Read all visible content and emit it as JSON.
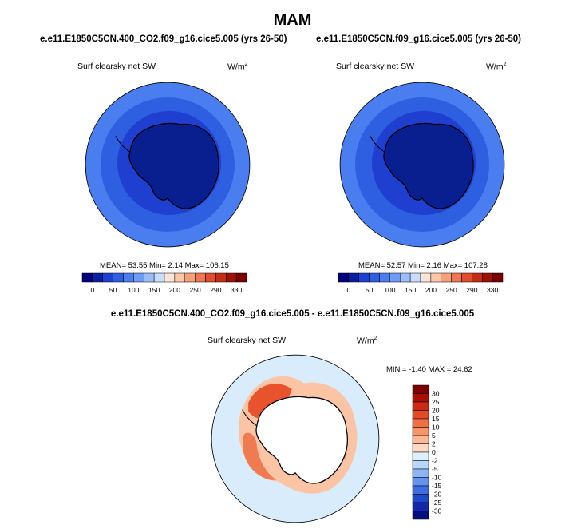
{
  "page": {
    "title": "MAM"
  },
  "colors": {
    "ocean_deep": "#1e3fcf",
    "ocean_mid": "#2e5fe0",
    "ocean_outer": "#4a7ef0",
    "land": "#0a1f8f",
    "diff_bg": "#d8ecfb",
    "coast": "#000000"
  },
  "panels": [
    {
      "case": "e.e11.E1850C5CN.400_CO2.f09_g16.cice5.005 (yrs 26-50)",
      "variable": "Surf clearsky net SW",
      "units": "W/m",
      "units_sup": "2",
      "stats": "MEAN=  53.55  Min=   2.14  Max= 106.15"
    },
    {
      "case": "e.e11.E1850C5CN.f09_g16.cice5.005 (yrs 26-50)",
      "variable": "Surf clearsky net SW",
      "units": "W/m",
      "units_sup": "2",
      "stats": "MEAN=  52.57  Min=   2.16  Max= 107.28"
    }
  ],
  "abs_colorbar": {
    "labels": [
      "0",
      "50",
      "100",
      "150",
      "200",
      "250",
      "290",
      "330"
    ],
    "colors": [
      "#00007f",
      "#0a1f9f",
      "#1e3fcf",
      "#2e5fe0",
      "#4a7ef0",
      "#6f9cf5",
      "#9bbdf9",
      "#c8dcfc",
      "#f9e5d8",
      "#fbc7a9",
      "#f6a07a",
      "#ee7650",
      "#dd4e2c",
      "#c22d15",
      "#9c1305",
      "#7a0000"
    ]
  },
  "diff_panel": {
    "title": "e.e11.E1850C5CN.400_CO2.f09_g16.cice5.005 - e.e11.E1850C5CN.f09_g16.cice5.005",
    "variable": "Surf clearsky net SW",
    "units": "W/m",
    "units_sup": "2",
    "stats": "MIN = -1.40 MAX = 24.62"
  },
  "diff_colorbar": {
    "labels": [
      "30",
      "25",
      "20",
      "15",
      "10",
      "5",
      "2",
      "0",
      "-2",
      "-5",
      "-10",
      "-15",
      "-20",
      "-25",
      "-30"
    ],
    "colors": [
      "#7f0000",
      "#a81005",
      "#cc2a12",
      "#e44a26",
      "#f36d45",
      "#f8946b",
      "#fbb896",
      "#fcd8c2",
      "#ddeefc",
      "#b8d5fa",
      "#8cb4f5",
      "#6492ee",
      "#3e6de3",
      "#2148c9",
      "#1228a6",
      "#050e7a"
    ]
  }
}
